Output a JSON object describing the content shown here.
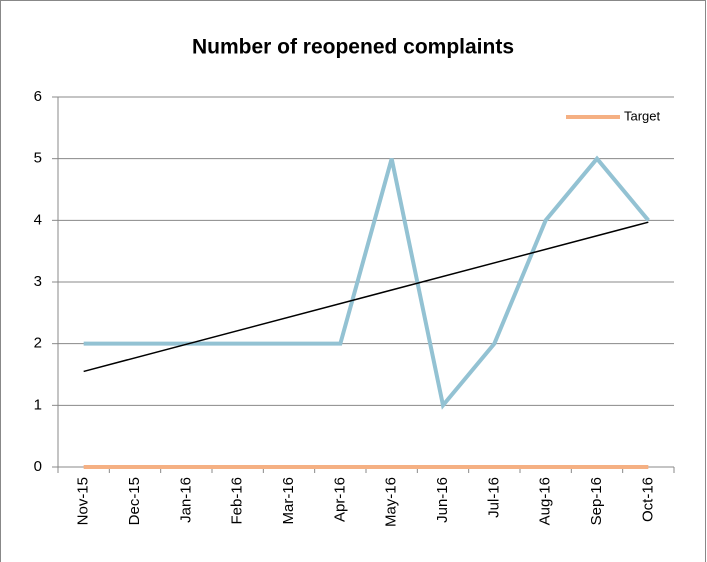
{
  "chart_data": {
    "type": "line",
    "title": "Number of reopened complaints",
    "categories": [
      "Nov-15",
      "Dec-15",
      "Jan-16",
      "Feb-16",
      "Mar-16",
      "Apr-16",
      "May-16",
      "Jun-16",
      "Jul-16",
      "Aug-16",
      "Sep-16",
      "Oct-16"
    ],
    "series": [
      {
        "color": "#93c2d3",
        "values": [
          2,
          2,
          2,
          2,
          2,
          2,
          5,
          1,
          2,
          4,
          5,
          4
        ]
      },
      {
        "name": "Target",
        "color": "#f5b083",
        "values": [
          0,
          0,
          0,
          0,
          0,
          0,
          0,
          0,
          0,
          0,
          0,
          0
        ]
      }
    ],
    "trendline": {
      "color": "#000000",
      "values": [
        1.55,
        3.97
      ]
    },
    "ylim": [
      0,
      6
    ],
    "yticks": [
      0,
      1,
      2,
      3,
      4,
      5,
      6
    ],
    "grid": true,
    "legend": "top-right"
  }
}
